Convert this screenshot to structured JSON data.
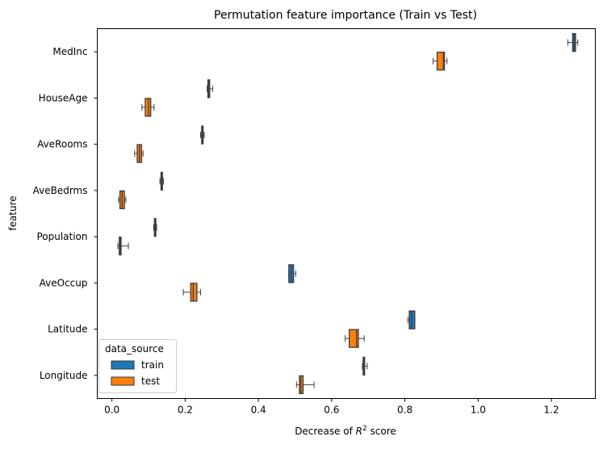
{
  "chart_data": {
    "type": "boxplot",
    "orientation": "horizontal",
    "title": "Permutation feature importance (Train vs Test)",
    "xlabel": "Decrease of R² score",
    "xlabel_parts": {
      "pre": "Decrease of ",
      "var": "R",
      "sup": "2",
      "post": " score"
    },
    "ylabel": "feature",
    "xlim": [
      -0.04,
      1.32
    ],
    "xticks": [
      0.0,
      0.2,
      0.4,
      0.6,
      0.8,
      1.0,
      1.2
    ],
    "xtick_labels": [
      "0.0",
      "0.2",
      "0.4",
      "0.6",
      "0.8",
      "1.0",
      "1.2"
    ],
    "categories": [
      "MedInc",
      "HouseAge",
      "AveRooms",
      "AveBedrms",
      "Population",
      "AveOccup",
      "Latitude",
      "Longitude"
    ],
    "legend": {
      "title": "data_source",
      "placement": "lower-left"
    },
    "series": [
      {
        "name": "train",
        "color": "#1f77b4",
        "boxes": [
          [
            1.245,
            1.258,
            1.262,
            1.266,
            1.272
          ],
          [
            0.26,
            0.262,
            0.264,
            0.267,
            0.275
          ],
          [
            0.242,
            0.245,
            0.247,
            0.249,
            0.252
          ],
          [
            0.131,
            0.134,
            0.136,
            0.138,
            0.141
          ],
          [
            0.114,
            0.116,
            0.118,
            0.12,
            0.122
          ],
          [
            0.483,
            0.483,
            0.49,
            0.496,
            0.502
          ],
          [
            0.808,
            0.812,
            0.818,
            0.827,
            0.827
          ],
          [
            0.684,
            0.686,
            0.688,
            0.69,
            0.697
          ]
        ]
      },
      {
        "name": "test",
        "color": "#ff7f0e",
        "boxes": [
          [
            0.877,
            0.888,
            0.905,
            0.908,
            0.915
          ],
          [
            0.082,
            0.091,
            0.1,
            0.106,
            0.115
          ],
          [
            0.062,
            0.069,
            0.075,
            0.081,
            0.085
          ],
          [
            0.018,
            0.022,
            0.028,
            0.034,
            0.038
          ],
          [
            0.016,
            0.02,
            0.023,
            0.025,
            0.045
          ],
          [
            0.195,
            0.215,
            0.222,
            0.232,
            0.242
          ],
          [
            0.637,
            0.648,
            0.668,
            0.673,
            0.689
          ],
          [
            0.504,
            0.512,
            0.516,
            0.522,
            0.552
          ]
        ]
      }
    ]
  }
}
